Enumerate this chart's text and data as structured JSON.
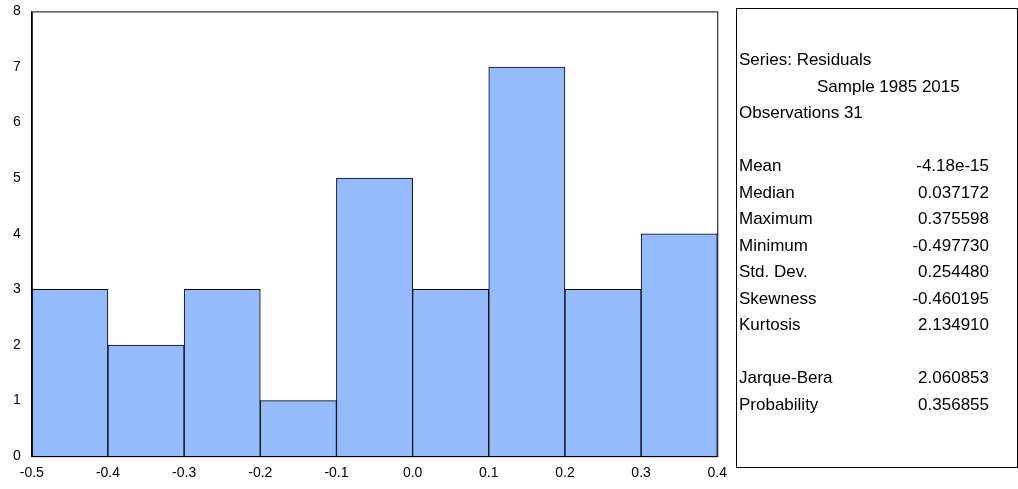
{
  "chart_data": {
    "type": "histogram",
    "bins": [
      -0.5,
      -0.4,
      -0.3,
      -0.2,
      -0.1,
      0.0,
      0.1,
      0.2,
      0.3,
      0.4
    ],
    "values": [
      3,
      2,
      3,
      1,
      5,
      3,
      7,
      3,
      4
    ],
    "color": "#94bbfc",
    "xlim": [
      -0.5,
      0.4
    ],
    "xticks": [
      -0.5,
      -0.4,
      -0.3,
      -0.2,
      -0.1,
      {
        "value": 0,
        "label": "0.0"
      },
      0.1,
      0.2,
      0.3,
      0.4
    ],
    "ylim": [
      0,
      8
    ],
    "yticks": [
      0,
      1,
      2,
      3,
      4,
      5,
      6,
      7,
      8
    ],
    "grid": false,
    "legend": false,
    "annotations": [
      "Series: Residuals",
      "Sample 1985 2015",
      "Observations 31",
      "Mean",
      "-4.18e-15",
      "Median",
      "0.037172",
      "Maximum",
      "0.375598",
      "Minimum",
      "-0.497730",
      "Std. Dev.",
      "0.254480",
      "Skewness",
      "-0.460195",
      "Kurtosis",
      "2.134910",
      "Jarque-Bera",
      "2.060853",
      "Probability",
      "0.356855"
    ]
  }
}
